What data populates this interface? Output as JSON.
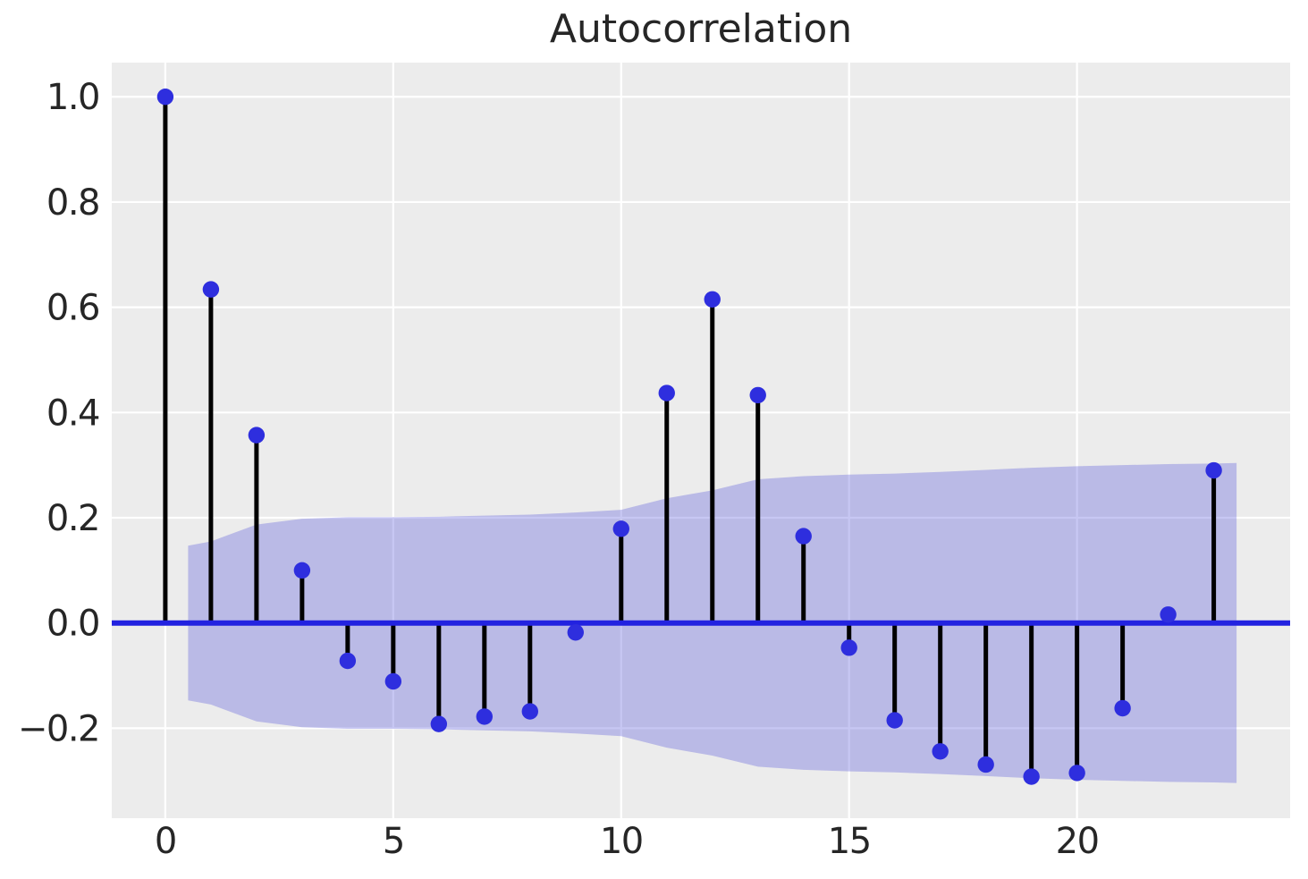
{
  "chart_data": {
    "type": "stem",
    "title": "Autocorrelation",
    "xlabel": "",
    "ylabel": "",
    "grid": true,
    "legend": "none",
    "lags": [
      0,
      1,
      2,
      3,
      4,
      5,
      6,
      7,
      8,
      9,
      10,
      11,
      12,
      13,
      14,
      15,
      16,
      17,
      18,
      19,
      20,
      21,
      22,
      23
    ],
    "acf_values": [
      1.0,
      0.634,
      0.357,
      0.1,
      -0.072,
      -0.111,
      -0.192,
      -0.178,
      -0.168,
      -0.018,
      0.179,
      0.437,
      0.615,
      0.433,
      0.165,
      -0.047,
      -0.185,
      -0.244,
      -0.269,
      -0.292,
      -0.285,
      -0.162,
      0.016,
      0.29
    ],
    "confidence_band": {
      "x": [
        0.5,
        1,
        2,
        3,
        4,
        5,
        6,
        7,
        8,
        9,
        10,
        11,
        12,
        13,
        14,
        15,
        16,
        17,
        18,
        19,
        20,
        21,
        22,
        23,
        23.5
      ],
      "upper": [
        0.147,
        0.155,
        0.187,
        0.198,
        0.201,
        0.201,
        0.202,
        0.204,
        0.206,
        0.21,
        0.215,
        0.237,
        0.252,
        0.273,
        0.279,
        0.282,
        0.284,
        0.287,
        0.291,
        0.295,
        0.298,
        0.3,
        0.302,
        0.303,
        0.304
      ],
      "lower": [
        -0.147,
        -0.155,
        -0.187,
        -0.198,
        -0.201,
        -0.201,
        -0.202,
        -0.204,
        -0.206,
        -0.21,
        -0.215,
        -0.237,
        -0.252,
        -0.273,
        -0.279,
        -0.282,
        -0.284,
        -0.287,
        -0.291,
        -0.295,
        -0.298,
        -0.3,
        -0.302,
        -0.303,
        -0.304
      ]
    },
    "xlim": [
      -1.175,
      24.675
    ],
    "ylim": [
      -0.371,
      1.065
    ],
    "x_tick_values": [
      0,
      5,
      10,
      15,
      20
    ],
    "x_tick_labels": [
      "0",
      "5",
      "10",
      "15",
      "20"
    ],
    "y_tick_values": [
      1.0,
      0.8,
      0.6,
      0.4,
      0.2,
      0.0,
      -0.2
    ],
    "y_tick_labels": [
      "1.0",
      "0.8",
      "0.6",
      "0.4",
      "0.2",
      "0.0",
      "−0.2"
    ],
    "colors": {
      "figure_background": "#ffffff",
      "axes_background": "#ececec",
      "gridline": "#ffffff",
      "stem_line": "#000000",
      "marker": "#2e2ede",
      "zero_line": "#2222e0",
      "band_fill": "rgba(70,70,215,0.30)",
      "text": "#262626"
    }
  }
}
